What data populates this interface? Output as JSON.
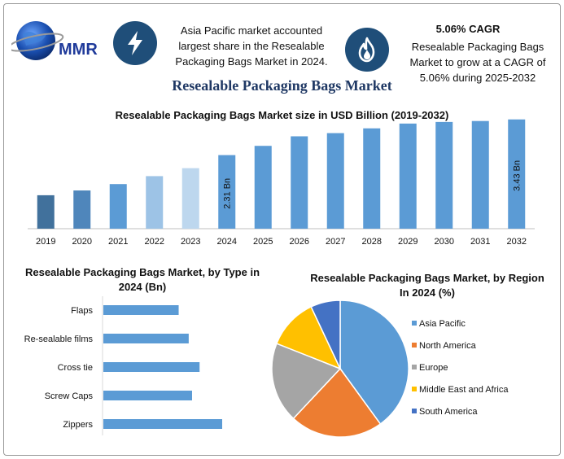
{
  "header": {
    "logo_text": "MMR",
    "bolt_icon": "lightning-bolt-icon",
    "flame_icon": "flame-icon",
    "highlight_1_lines": [
      "Asia Pacific market accounted",
      "largest share in the Resealable",
      "Packaging Bags Market in 2024."
    ],
    "cagr_title": "5.06% CAGR",
    "cagr_lines": [
      "Resealable Packaging Bags",
      "Market to grow at a CAGR of",
      "5.06% during 2025-2032"
    ]
  },
  "main_title": "Resealable Packaging Bags Market",
  "colors": {
    "accent_dark_blue": "#1f4e79",
    "title_navy": "#1f3864",
    "bar_blue": "#5b9bd5"
  },
  "chart_data": [
    {
      "type": "bar",
      "title": "Resealable Packaging Bags Market size in USD Billion (2019-2032)",
      "categories": [
        "2019",
        "2020",
        "2021",
        "2022",
        "2023",
        "2024",
        "2025",
        "2026",
        "2027",
        "2028",
        "2029",
        "2030",
        "2031",
        "2032"
      ],
      "values": [
        1.05,
        1.2,
        1.4,
        1.65,
        1.9,
        2.31,
        2.6,
        2.9,
        3.0,
        3.15,
        3.3,
        3.35,
        3.38,
        3.43
      ],
      "bar_colors": [
        "#41719c",
        "#4f86bb",
        "#5b9bd5",
        "#9dc3e6",
        "#bdd7ee",
        "#5b9bd5",
        "#5b9bd5",
        "#5b9bd5",
        "#5b9bd5",
        "#5b9bd5",
        "#5b9bd5",
        "#5b9bd5",
        "#5b9bd5",
        "#5b9bd5"
      ],
      "data_labels": [
        {
          "category": "2024",
          "text": "2.31 Bn"
        },
        {
          "category": "2032",
          "text": "3.43 Bn"
        }
      ],
      "ylim": [
        0,
        3.5
      ],
      "grid": false,
      "xlabel": "",
      "ylabel": ""
    },
    {
      "type": "bar",
      "orientation": "horizontal",
      "title": "Resealable Packaging Bags Market, by Type in 2024 (Bn)",
      "categories": [
        "Flaps",
        "Re-sealable films",
        "Cross tie",
        "Screw Caps",
        "Zippers"
      ],
      "values": [
        0.9,
        1.02,
        1.15,
        1.06,
        1.42
      ],
      "xlim": [
        0,
        1.5
      ],
      "color": "#5b9bd5"
    },
    {
      "type": "pie",
      "title": "Resealable Packaging Bags Market, by Region In 2024 (%)",
      "labels": [
        "Asia Pacific",
        "North America",
        "Europe",
        "Middle East and Africa",
        "South America"
      ],
      "values": [
        40,
        22,
        19,
        12,
        7
      ],
      "colors": [
        "#5b9bd5",
        "#ed7d31",
        "#a5a5a5",
        "#ffc000",
        "#4472c4"
      ],
      "legend": "right"
    }
  ]
}
